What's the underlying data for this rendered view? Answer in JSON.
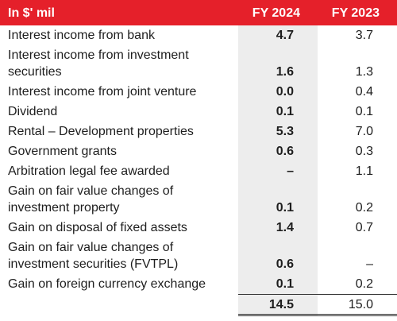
{
  "table": {
    "header": [
      "In $' mil",
      "FY 2024",
      "FY 2023"
    ],
    "rows": [
      [
        "Interest income from bank",
        "4.7",
        "3.7"
      ],
      [
        "Interest income from investment securities",
        "1.6",
        "1.3"
      ],
      [
        "Interest income from joint venture",
        "0.0",
        "0.4"
      ],
      [
        "Dividend",
        "0.1",
        "0.1"
      ],
      [
        "Rental – Development properties",
        "5.3",
        "7.0"
      ],
      [
        "Government grants",
        "0.6",
        "0.3"
      ],
      [
        "Arbitration legal fee awarded",
        "–",
        "1.1"
      ],
      [
        "Gain on fair value changes of investment property",
        "0.1",
        "0.2"
      ],
      [
        "Gain on disposal of fixed assets",
        "1.4",
        "0.7"
      ],
      [
        "Gain on fair value changes of investment securities (FVTPL)",
        "0.6",
        "–"
      ],
      [
        "Gain on foreign currency exchange",
        "0.1",
        "0.2"
      ]
    ],
    "total": [
      "14.5",
      "15.0"
    ]
  }
}
